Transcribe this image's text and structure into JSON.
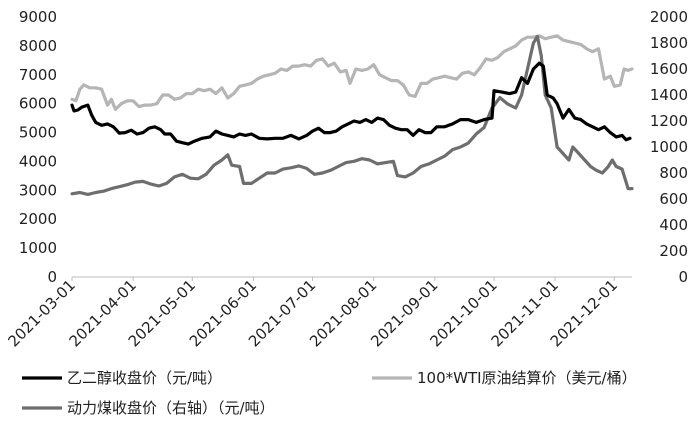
{
  "chart_data": {
    "type": "line",
    "y_left": {
      "min": 0,
      "max": 9000,
      "step": 1000
    },
    "y_right": {
      "min": 0,
      "max": 2000,
      "step": 200
    },
    "y_left_ticks": [
      "0",
      "1000",
      "2000",
      "3000",
      "4000",
      "5000",
      "6000",
      "7000",
      "8000",
      "9000"
    ],
    "y_right_ticks": [
      "0",
      "200",
      "400",
      "600",
      "800",
      "1000",
      "1200",
      "1400",
      "1600",
      "1800",
      "2000"
    ],
    "x_range": [
      "2021-03-01",
      "2021-12-10"
    ],
    "x_ticks": [
      "2021-03-01",
      "2021-04-01",
      "2021-05-01",
      "2021-06-01",
      "2021-07-01",
      "2021-08-01",
      "2021-09-01",
      "2021-10-01",
      "2021-11-01",
      "2021-12-01"
    ],
    "grid": false,
    "legend_position": "bottom",
    "series": [
      {
        "name": "乙二醇收盘价（元/吨）",
        "axis": "left",
        "color": "#000000",
        "points": [
          [
            "2021-03-01",
            5950
          ],
          [
            "2021-03-02",
            5750
          ],
          [
            "2021-03-04",
            5780
          ],
          [
            "2021-03-06",
            5880
          ],
          [
            "2021-03-09",
            5950
          ],
          [
            "2021-03-11",
            5600
          ],
          [
            "2021-03-13",
            5350
          ],
          [
            "2021-03-16",
            5250
          ],
          [
            "2021-03-19",
            5300
          ],
          [
            "2021-03-22",
            5200
          ],
          [
            "2021-03-25",
            4980
          ],
          [
            "2021-03-28",
            5000
          ],
          [
            "2021-03-31",
            5080
          ],
          [
            "2021-04-03",
            4950
          ],
          [
            "2021-04-06",
            5000
          ],
          [
            "2021-04-09",
            5150
          ],
          [
            "2021-04-12",
            5200
          ],
          [
            "2021-04-15",
            5100
          ],
          [
            "2021-04-17",
            4950
          ],
          [
            "2021-04-20",
            4950
          ],
          [
            "2021-04-23",
            4700
          ],
          [
            "2021-04-26",
            4650
          ],
          [
            "2021-04-29",
            4600
          ],
          [
            "2021-05-02",
            4700
          ],
          [
            "2021-05-06",
            4800
          ],
          [
            "2021-05-10",
            4850
          ],
          [
            "2021-05-13",
            5050
          ],
          [
            "2021-05-16",
            4950
          ],
          [
            "2021-05-19",
            4900
          ],
          [
            "2021-05-22",
            4850
          ],
          [
            "2021-05-25",
            4950
          ],
          [
            "2021-05-28",
            4900
          ],
          [
            "2021-05-31",
            4950
          ],
          [
            "2021-06-04",
            4800
          ],
          [
            "2021-06-08",
            4780
          ],
          [
            "2021-06-12",
            4800
          ],
          [
            "2021-06-16",
            4800
          ],
          [
            "2021-06-20",
            4900
          ],
          [
            "2021-06-24",
            4780
          ],
          [
            "2021-06-28",
            4900
          ],
          [
            "2021-07-01",
            5050
          ],
          [
            "2021-07-04",
            5150
          ],
          [
            "2021-07-07",
            5000
          ],
          [
            "2021-07-10",
            5000
          ],
          [
            "2021-07-13",
            5050
          ],
          [
            "2021-07-16",
            5200
          ],
          [
            "2021-07-19",
            5300
          ],
          [
            "2021-07-22",
            5400
          ],
          [
            "2021-07-25",
            5350
          ],
          [
            "2021-07-28",
            5450
          ],
          [
            "2021-07-31",
            5350
          ],
          [
            "2021-08-03",
            5500
          ],
          [
            "2021-08-06",
            5450
          ],
          [
            "2021-08-09",
            5250
          ],
          [
            "2021-08-12",
            5150
          ],
          [
            "2021-08-15",
            5100
          ],
          [
            "2021-08-18",
            5100
          ],
          [
            "2021-08-21",
            4900
          ],
          [
            "2021-08-24",
            5100
          ],
          [
            "2021-08-27",
            5000
          ],
          [
            "2021-08-30",
            5000
          ],
          [
            "2021-09-02",
            5200
          ],
          [
            "2021-09-06",
            5200
          ],
          [
            "2021-09-10",
            5300
          ],
          [
            "2021-09-14",
            5450
          ],
          [
            "2021-09-18",
            5450
          ],
          [
            "2021-09-22",
            5350
          ],
          [
            "2021-09-26",
            5450
          ],
          [
            "2021-09-30",
            5500
          ],
          [
            "2021-10-01",
            6450
          ],
          [
            "2021-10-05",
            6400
          ],
          [
            "2021-10-09",
            6350
          ],
          [
            "2021-10-12",
            6400
          ],
          [
            "2021-10-15",
            6900
          ],
          [
            "2021-10-18",
            6700
          ],
          [
            "2021-10-21",
            7200
          ],
          [
            "2021-10-24",
            7400
          ],
          [
            "2021-10-26",
            7300
          ],
          [
            "2021-10-28",
            6300
          ],
          [
            "2021-10-31",
            6200
          ],
          [
            "2021-11-02",
            6000
          ],
          [
            "2021-11-05",
            5500
          ],
          [
            "2021-11-08",
            5800
          ],
          [
            "2021-11-11",
            5500
          ],
          [
            "2021-11-14",
            5450
          ],
          [
            "2021-11-17",
            5300
          ],
          [
            "2021-11-20",
            5200
          ],
          [
            "2021-11-23",
            5100
          ],
          [
            "2021-11-26",
            5200
          ],
          [
            "2021-11-29",
            5000
          ],
          [
            "2021-12-02",
            4850
          ],
          [
            "2021-12-05",
            4900
          ],
          [
            "2021-12-07",
            4750
          ],
          [
            "2021-12-09",
            4800
          ]
        ]
      },
      {
        "name": "100*WTI原油结算价（美元/桶）",
        "axis": "left",
        "color": "#b5b5b5",
        "points": [
          [
            "2021-03-01",
            6150
          ],
          [
            "2021-03-03",
            6100
          ],
          [
            "2021-03-05",
            6500
          ],
          [
            "2021-03-07",
            6650
          ],
          [
            "2021-03-10",
            6550
          ],
          [
            "2021-03-13",
            6550
          ],
          [
            "2021-03-16",
            6500
          ],
          [
            "2021-03-19",
            5950
          ],
          [
            "2021-03-21",
            6150
          ],
          [
            "2021-03-23",
            5800
          ],
          [
            "2021-03-26",
            6000
          ],
          [
            "2021-03-29",
            6100
          ],
          [
            "2021-04-01",
            6100
          ],
          [
            "2021-04-04",
            5900
          ],
          [
            "2021-04-07",
            5950
          ],
          [
            "2021-04-10",
            5950
          ],
          [
            "2021-04-13",
            6000
          ],
          [
            "2021-04-16",
            6300
          ],
          [
            "2021-04-19",
            6300
          ],
          [
            "2021-04-22",
            6150
          ],
          [
            "2021-04-25",
            6200
          ],
          [
            "2021-04-28",
            6350
          ],
          [
            "2021-05-01",
            6350
          ],
          [
            "2021-05-04",
            6500
          ],
          [
            "2021-05-07",
            6450
          ],
          [
            "2021-05-10",
            6500
          ],
          [
            "2021-05-13",
            6350
          ],
          [
            "2021-05-16",
            6550
          ],
          [
            "2021-05-19",
            6200
          ],
          [
            "2021-05-22",
            6350
          ],
          [
            "2021-05-25",
            6600
          ],
          [
            "2021-05-28",
            6650
          ],
          [
            "2021-05-31",
            6700
          ],
          [
            "2021-06-03",
            6850
          ],
          [
            "2021-06-06",
            6950
          ],
          [
            "2021-06-09",
            7000
          ],
          [
            "2021-06-12",
            7050
          ],
          [
            "2021-06-15",
            7200
          ],
          [
            "2021-06-18",
            7150
          ],
          [
            "2021-06-21",
            7300
          ],
          [
            "2021-06-24",
            7300
          ],
          [
            "2021-06-27",
            7350
          ],
          [
            "2021-06-30",
            7300
          ],
          [
            "2021-07-03",
            7500
          ],
          [
            "2021-07-06",
            7550
          ],
          [
            "2021-07-09",
            7300
          ],
          [
            "2021-07-12",
            7400
          ],
          [
            "2021-07-15",
            7100
          ],
          [
            "2021-07-18",
            7150
          ],
          [
            "2021-07-20",
            6700
          ],
          [
            "2021-07-23",
            7200
          ],
          [
            "2021-07-26",
            7150
          ],
          [
            "2021-07-29",
            7200
          ],
          [
            "2021-08-01",
            7350
          ],
          [
            "2021-08-04",
            7000
          ],
          [
            "2021-08-07",
            6900
          ],
          [
            "2021-08-10",
            6800
          ],
          [
            "2021-08-13",
            6800
          ],
          [
            "2021-08-16",
            6650
          ],
          [
            "2021-08-19",
            6300
          ],
          [
            "2021-08-22",
            6250
          ],
          [
            "2021-08-25",
            6700
          ],
          [
            "2021-08-28",
            6700
          ],
          [
            "2021-08-31",
            6850
          ],
          [
            "2021-09-03",
            6900
          ],
          [
            "2021-09-06",
            6950
          ],
          [
            "2021-09-09",
            6900
          ],
          [
            "2021-09-12",
            6850
          ],
          [
            "2021-09-15",
            7050
          ],
          [
            "2021-09-18",
            7100
          ],
          [
            "2021-09-21",
            7000
          ],
          [
            "2021-09-24",
            7250
          ],
          [
            "2021-09-27",
            7550
          ],
          [
            "2021-09-30",
            7500
          ],
          [
            "2021-10-03",
            7600
          ],
          [
            "2021-10-06",
            7800
          ],
          [
            "2021-10-09",
            7900
          ],
          [
            "2021-10-12",
            8000
          ],
          [
            "2021-10-15",
            8200
          ],
          [
            "2021-10-18",
            8300
          ],
          [
            "2021-10-21",
            8300
          ],
          [
            "2021-10-24",
            8350
          ],
          [
            "2021-10-27",
            8250
          ],
          [
            "2021-10-30",
            8300
          ],
          [
            "2021-11-02",
            8350
          ],
          [
            "2021-11-05",
            8200
          ],
          [
            "2021-11-08",
            8150
          ],
          [
            "2021-11-11",
            8100
          ],
          [
            "2021-11-14",
            8050
          ],
          [
            "2021-11-17",
            7900
          ],
          [
            "2021-11-20",
            7800
          ],
          [
            "2021-11-23",
            7900
          ],
          [
            "2021-11-26",
            6850
          ],
          [
            "2021-11-29",
            6950
          ],
          [
            "2021-12-01",
            6600
          ],
          [
            "2021-12-04",
            6650
          ],
          [
            "2021-12-06",
            7200
          ],
          [
            "2021-12-08",
            7150
          ],
          [
            "2021-12-10",
            7200
          ]
        ]
      },
      {
        "name": "动力煤收盘价（右轴）（元/吨）",
        "axis": "right",
        "color": "#6e6e6e",
        "points": [
          [
            "2021-03-01",
            640
          ],
          [
            "2021-03-05",
            650
          ],
          [
            "2021-03-09",
            635
          ],
          [
            "2021-03-13",
            650
          ],
          [
            "2021-03-17",
            660
          ],
          [
            "2021-03-21",
            680
          ],
          [
            "2021-03-25",
            695
          ],
          [
            "2021-03-29",
            710
          ],
          [
            "2021-04-02",
            730
          ],
          [
            "2021-04-06",
            735
          ],
          [
            "2021-04-10",
            715
          ],
          [
            "2021-04-14",
            700
          ],
          [
            "2021-04-18",
            720
          ],
          [
            "2021-04-22",
            770
          ],
          [
            "2021-04-26",
            790
          ],
          [
            "2021-04-30",
            760
          ],
          [
            "2021-05-04",
            755
          ],
          [
            "2021-05-08",
            790
          ],
          [
            "2021-05-12",
            860
          ],
          [
            "2021-05-16",
            900
          ],
          [
            "2021-05-19",
            940
          ],
          [
            "2021-05-21",
            860
          ],
          [
            "2021-05-25",
            850
          ],
          [
            "2021-05-27",
            720
          ],
          [
            "2021-05-31",
            720
          ],
          [
            "2021-06-04",
            760
          ],
          [
            "2021-06-08",
            800
          ],
          [
            "2021-06-12",
            800
          ],
          [
            "2021-06-16",
            830
          ],
          [
            "2021-06-20",
            840
          ],
          [
            "2021-06-24",
            855
          ],
          [
            "2021-06-28",
            835
          ],
          [
            "2021-07-02",
            790
          ],
          [
            "2021-07-06",
            800
          ],
          [
            "2021-07-10",
            820
          ],
          [
            "2021-07-14",
            850
          ],
          [
            "2021-07-18",
            880
          ],
          [
            "2021-07-22",
            890
          ],
          [
            "2021-07-26",
            910
          ],
          [
            "2021-07-30",
            900
          ],
          [
            "2021-08-03",
            870
          ],
          [
            "2021-08-07",
            880
          ],
          [
            "2021-08-11",
            890
          ],
          [
            "2021-08-13",
            780
          ],
          [
            "2021-08-17",
            770
          ],
          [
            "2021-08-21",
            800
          ],
          [
            "2021-08-25",
            850
          ],
          [
            "2021-08-29",
            870
          ],
          [
            "2021-09-02",
            900
          ],
          [
            "2021-09-06",
            930
          ],
          [
            "2021-09-10",
            980
          ],
          [
            "2021-09-14",
            1000
          ],
          [
            "2021-09-18",
            1030
          ],
          [
            "2021-09-22",
            1100
          ],
          [
            "2021-09-26",
            1150
          ],
          [
            "2021-09-30",
            1300
          ],
          [
            "2021-10-04",
            1380
          ],
          [
            "2021-10-08",
            1330
          ],
          [
            "2021-10-12",
            1300
          ],
          [
            "2021-10-15",
            1400
          ],
          [
            "2021-10-18",
            1600
          ],
          [
            "2021-10-21",
            1800
          ],
          [
            "2021-10-23",
            1850
          ],
          [
            "2021-10-25",
            1700
          ],
          [
            "2021-10-27",
            1400
          ],
          [
            "2021-10-30",
            1300
          ],
          [
            "2021-11-02",
            1000
          ],
          [
            "2021-11-05",
            950
          ],
          [
            "2021-11-08",
            900
          ],
          [
            "2021-11-10",
            1000
          ],
          [
            "2021-11-13",
            950
          ],
          [
            "2021-11-16",
            900
          ],
          [
            "2021-11-19",
            850
          ],
          [
            "2021-11-22",
            820
          ],
          [
            "2021-11-25",
            800
          ],
          [
            "2021-11-28",
            850
          ],
          [
            "2021-11-30",
            900
          ],
          [
            "2021-12-02",
            850
          ],
          [
            "2021-12-05",
            830
          ],
          [
            "2021-12-08",
            680
          ],
          [
            "2021-12-10",
            680
          ]
        ]
      }
    ]
  }
}
